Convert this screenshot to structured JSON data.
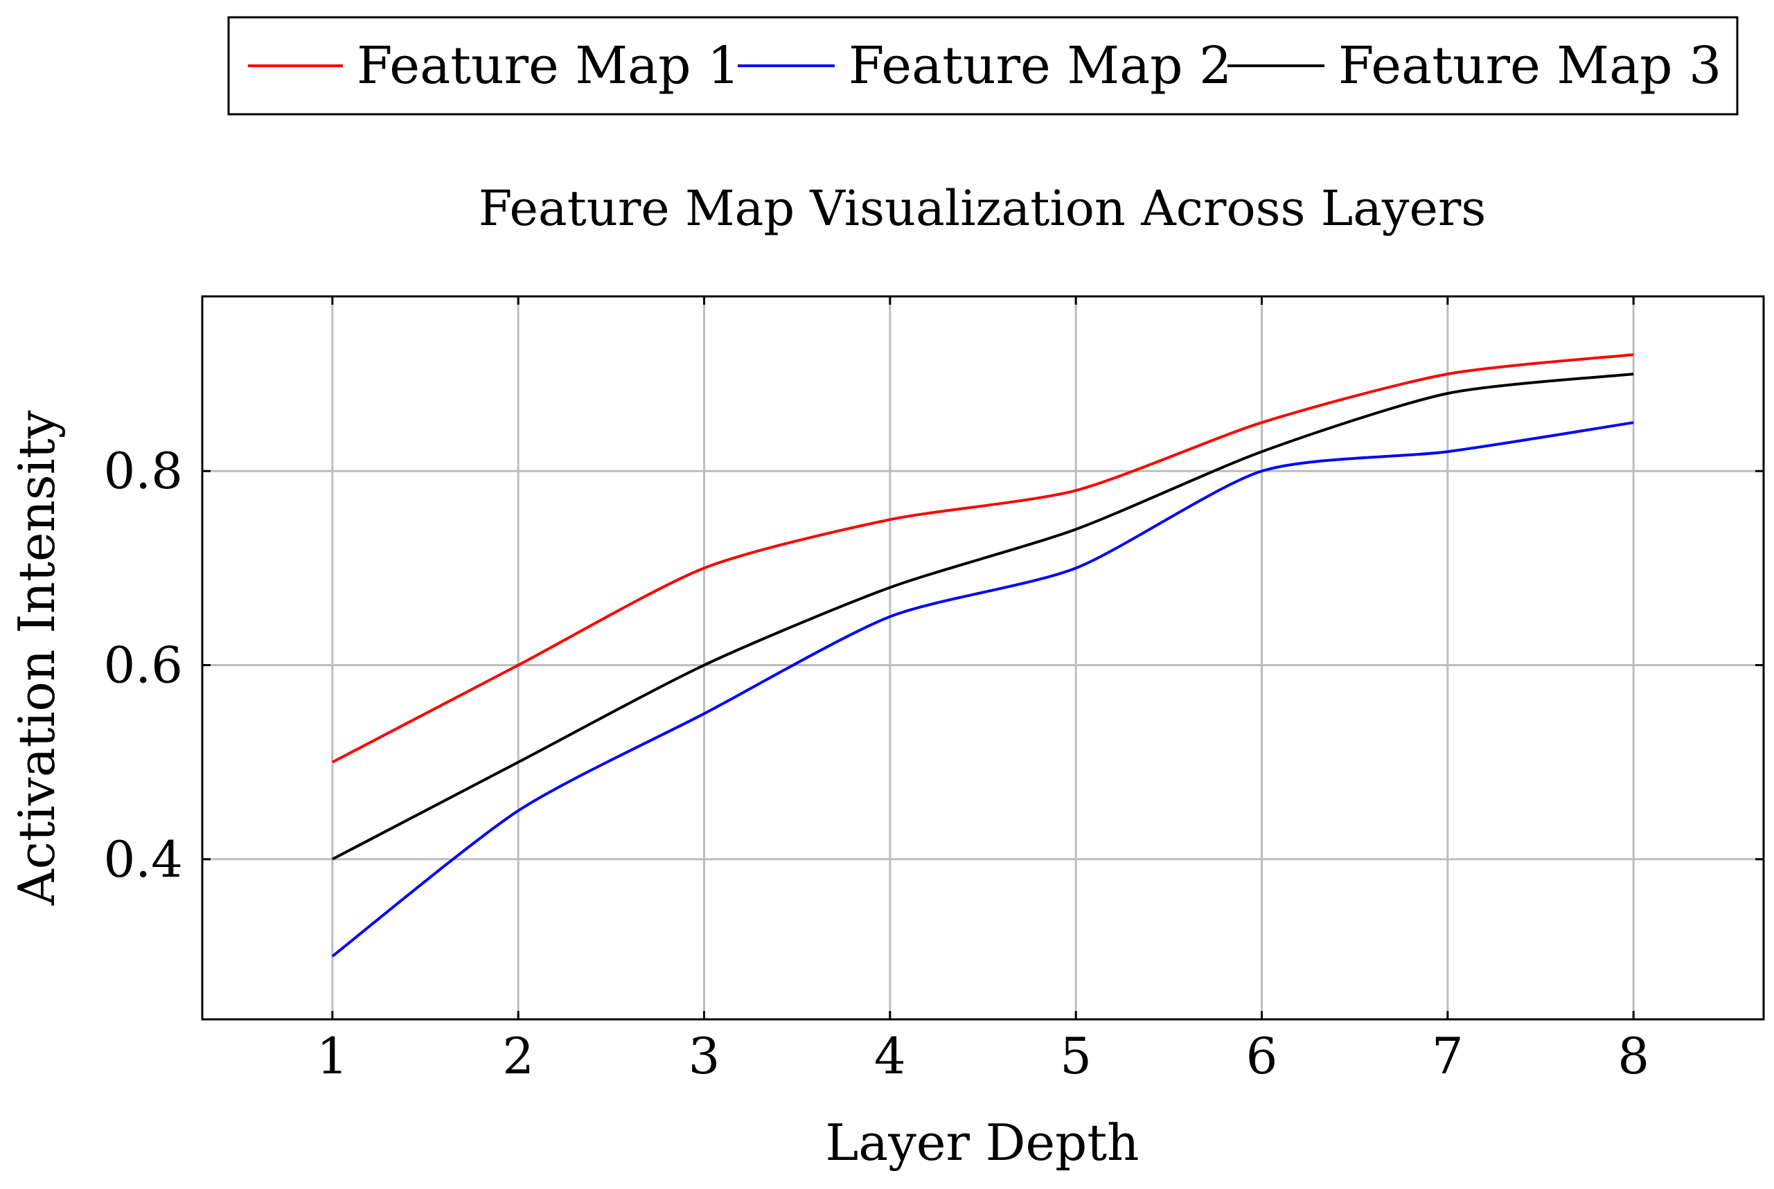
{
  "chart_data": {
    "type": "line",
    "title": "Feature Map Visualization Across Layers",
    "xlabel": "Layer Depth",
    "ylabel": "Activation Intensity",
    "x": [
      1,
      2,
      3,
      4,
      5,
      6,
      7,
      8
    ],
    "xlim": [
      0.3,
      8.7
    ],
    "ylim": [
      0.235,
      0.98
    ],
    "xticks": [
      1,
      2,
      3,
      4,
      5,
      6,
      7,
      8
    ],
    "yticks": [
      0.4,
      0.6,
      0.8
    ],
    "ytick_labels": [
      "0.4",
      "0.6",
      "0.8"
    ],
    "grid": true,
    "legend_position": "top-center",
    "series": [
      {
        "name": "Feature Map 1",
        "color": "#ff0000",
        "values": [
          0.5,
          0.6,
          0.7,
          0.75,
          0.78,
          0.85,
          0.9,
          0.92
        ]
      },
      {
        "name": "Feature Map 2",
        "color": "#0000ff",
        "values": [
          0.3,
          0.45,
          0.55,
          0.65,
          0.7,
          0.8,
          0.82,
          0.85
        ]
      },
      {
        "name": "Feature Map 3",
        "color": "#000000",
        "values": [
          0.4,
          0.5,
          0.6,
          0.68,
          0.74,
          0.82,
          0.88,
          0.9
        ]
      }
    ]
  }
}
